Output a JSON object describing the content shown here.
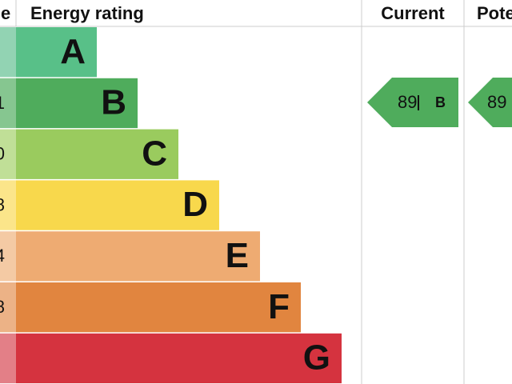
{
  "header": {
    "score": "e",
    "rating": "Energy rating",
    "current": "Current",
    "potential": "Pote"
  },
  "bands": [
    {
      "letter": "A",
      "score": null,
      "color": "#58c088",
      "light": "#92d3b3"
    },
    {
      "letter": "B",
      "score": "1",
      "color": "#4fac5c",
      "light": "#86c690"
    },
    {
      "letter": "C",
      "score": "0",
      "color": "#9acb5e",
      "light": "#c0df97"
    },
    {
      "letter": "D",
      "score": "8",
      "color": "#f8d84c",
      "light": "#fbe58a"
    },
    {
      "letter": "E",
      "score": "4",
      "color": "#eeab72",
      "light": "#f4caa4"
    },
    {
      "letter": "F",
      "score": "8",
      "color": "#e1853f",
      "light": "#ecb286"
    },
    {
      "letter": "G",
      "score": null,
      "color": "#d5333f",
      "light": "#e37f87"
    }
  ],
  "current": {
    "value": "89",
    "band": "B",
    "color": "#4fac5c"
  },
  "potential": {
    "value": "89",
    "color": "#4fac5c"
  }
}
